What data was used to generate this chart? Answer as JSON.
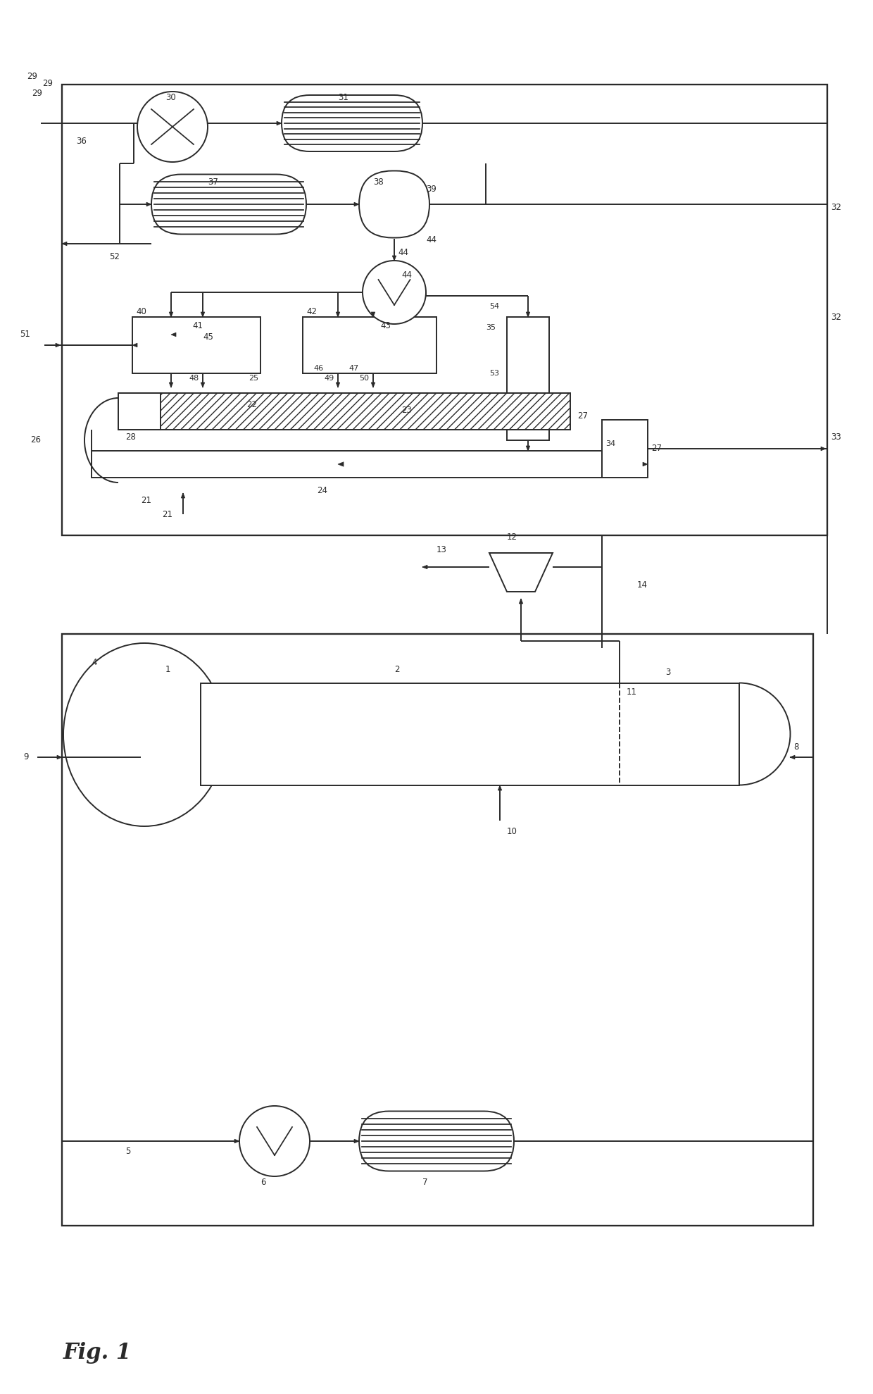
{
  "bg_color": "#ffffff",
  "line_color": "#2a2a2a",
  "lw": 1.4,
  "fig_width": 12.4,
  "fig_height": 19.79
}
